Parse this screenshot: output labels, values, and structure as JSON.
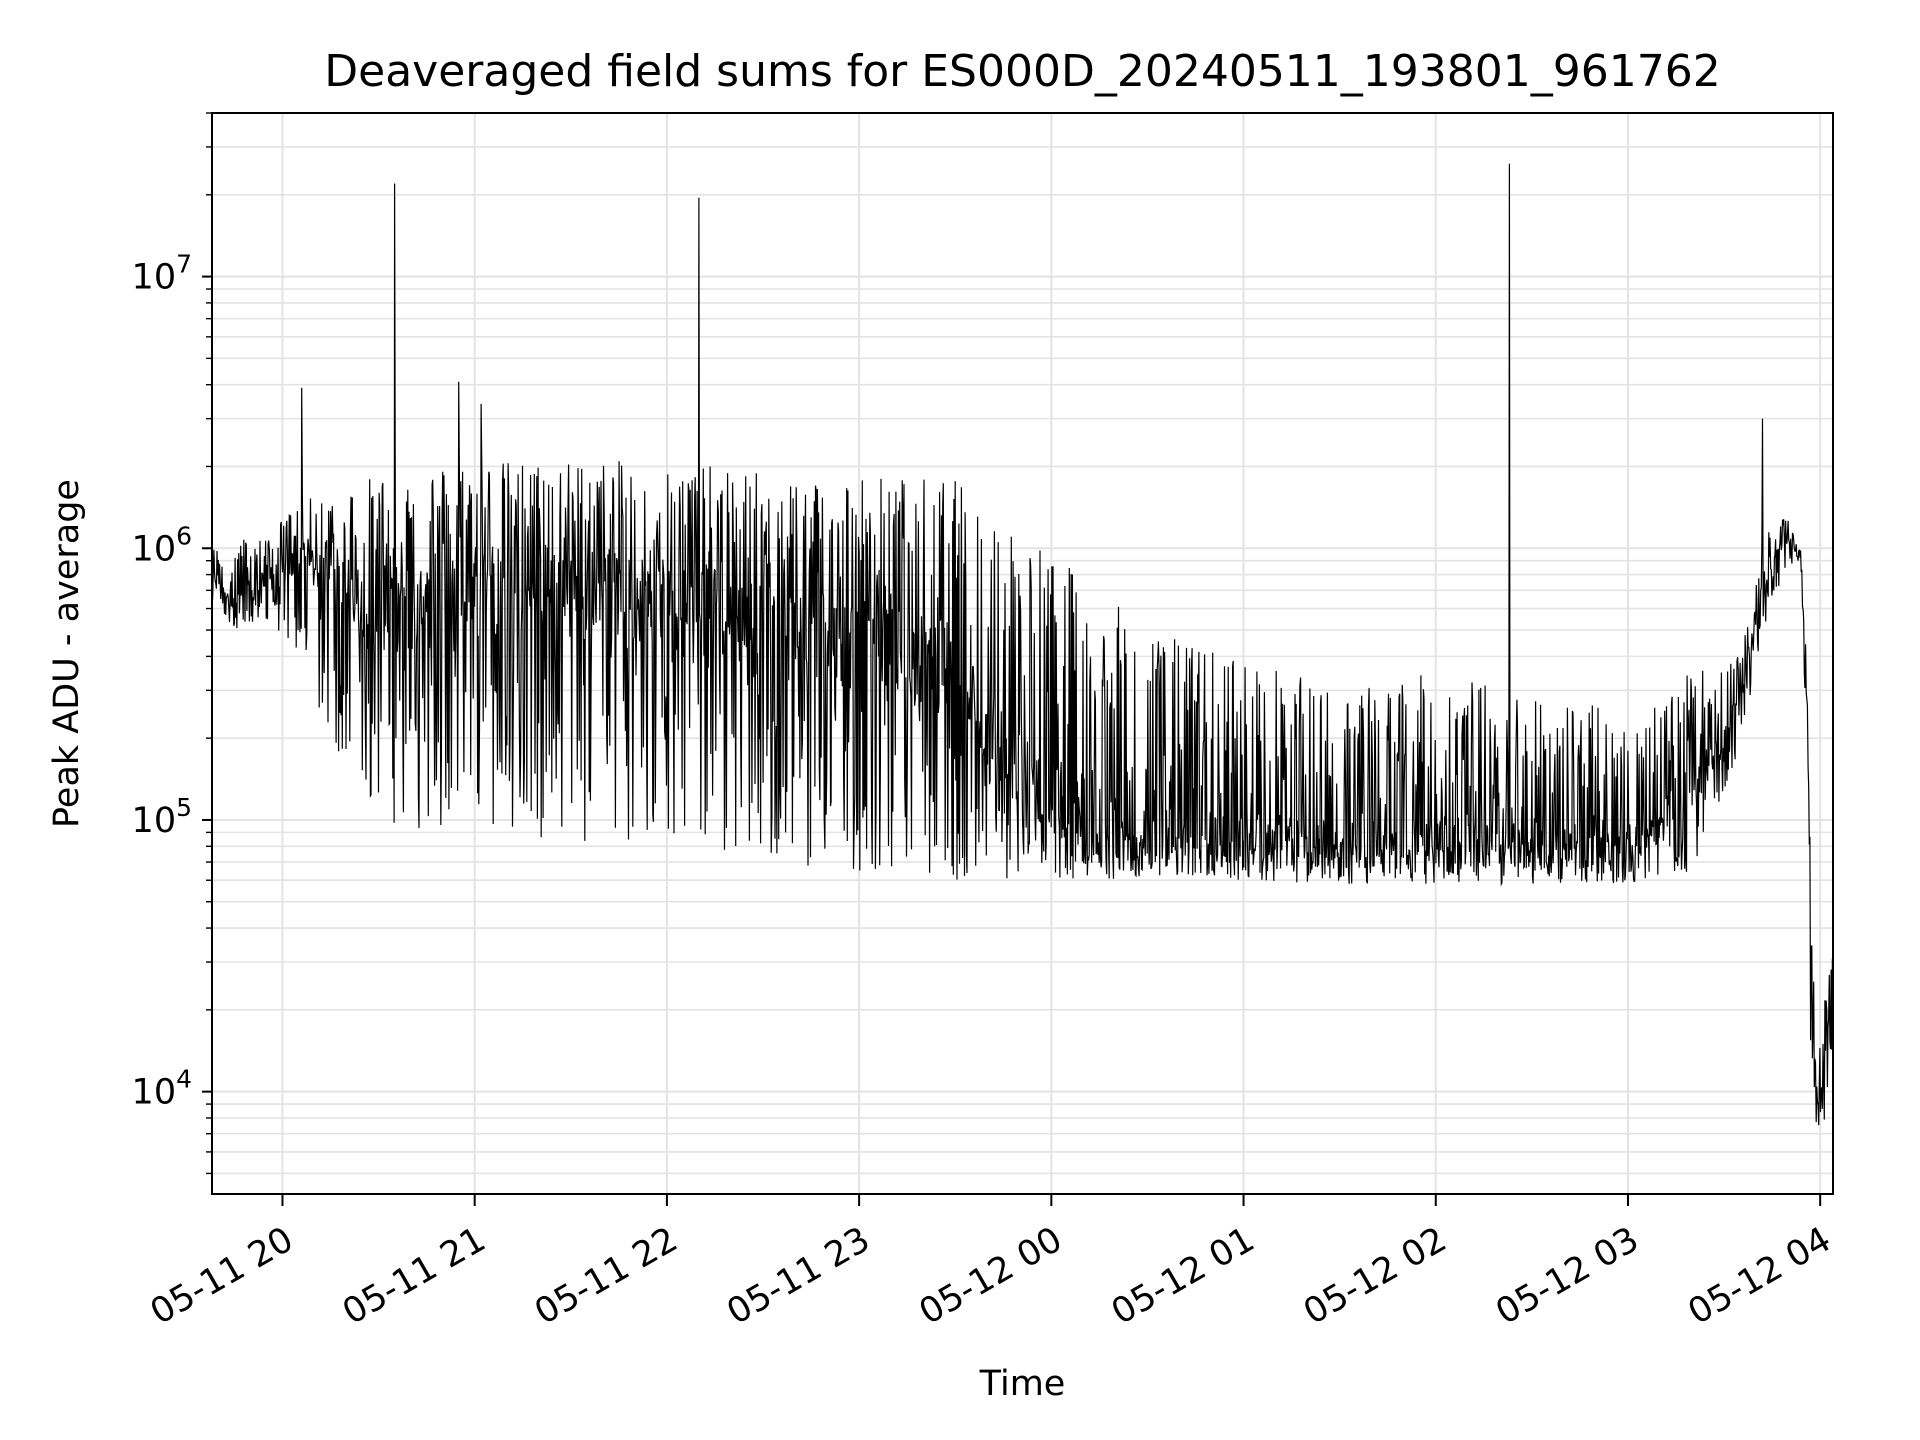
{
  "chart_data": {
    "type": "line",
    "title": "Deaveraged field sums for ES000D_20240511_193801_961762",
    "xlabel": "Time",
    "ylabel": "Peak ADU - average",
    "yscale": "log",
    "ylim": [
      4200,
      40000000
    ],
    "xlim": [
      "2024-05-11 19:38",
      "2024-05-12 04:04"
    ],
    "grid": true,
    "x_ticks": [
      {
        "t": "2024-05-11 20:00",
        "label": "05-11 20"
      },
      {
        "t": "2024-05-11 21:00",
        "label": "05-11 21"
      },
      {
        "t": "2024-05-11 22:00",
        "label": "05-11 22"
      },
      {
        "t": "2024-05-11 23:00",
        "label": "05-11 23"
      },
      {
        "t": "2024-05-12 00:00",
        "label": "05-12 00"
      },
      {
        "t": "2024-05-12 01:00",
        "label": "05-12 01"
      },
      {
        "t": "2024-05-12 02:00",
        "label": "05-12 02"
      },
      {
        "t": "2024-05-12 03:00",
        "label": "05-12 03"
      },
      {
        "t": "2024-05-12 04:00",
        "label": "05-12 04"
      }
    ],
    "y_ticks": [
      {
        "value": 10000,
        "base": "10",
        "exp": "4"
      },
      {
        "value": 100000,
        "base": "10",
        "exp": "5"
      },
      {
        "value": 1000000,
        "base": "10",
        "exp": "6"
      },
      {
        "value": 10000000,
        "base": "10",
        "exp": "7"
      }
    ],
    "envelope": [
      {
        "t": "2024-05-11 19:38",
        "upper": 1000000,
        "lower": 650000,
        "base": 800000
      },
      {
        "t": "2024-05-11 19:45",
        "upper": 1100000,
        "lower": 500000,
        "base": 650000
      },
      {
        "t": "2024-05-11 19:55",
        "upper": 1100000,
        "lower": 550000,
        "base": 750000
      },
      {
        "t": "2024-05-11 20:05",
        "upper": 1500000,
        "lower": 400000,
        "base": 900000
      },
      {
        "t": "2024-05-11 20:15",
        "upper": 1600000,
        "lower": 200000,
        "base": 800000
      },
      {
        "t": "2024-05-11 20:25",
        "upper": 1800000,
        "lower": 110000,
        "base": 600000
      },
      {
        "t": "2024-05-11 20:40",
        "upper": 2000000,
        "lower": 90000,
        "base": 600000
      },
      {
        "t": "2024-05-11 21:00",
        "upper": 2100000,
        "lower": 85000,
        "base": 700000
      },
      {
        "t": "2024-05-11 21:30",
        "upper": 2100000,
        "lower": 80000,
        "base": 700000
      },
      {
        "t": "2024-05-11 22:00",
        "upper": 2100000,
        "lower": 80000,
        "base": 650000
      },
      {
        "t": "2024-05-11 22:30",
        "upper": 1900000,
        "lower": 70000,
        "base": 500000
      },
      {
        "t": "2024-05-11 23:00",
        "upper": 1900000,
        "lower": 65000,
        "base": 450000
      },
      {
        "t": "2024-05-11 23:30",
        "upper": 1800000,
        "lower": 60000,
        "base": 350000
      },
      {
        "t": "2024-05-11 23:50",
        "upper": 1200000,
        "lower": 60000,
        "base": 150000
      },
      {
        "t": "2024-05-12 00:15",
        "upper": 700000,
        "lower": 60000,
        "base": 100000
      },
      {
        "t": "2024-05-12 00:30",
        "upper": 500000,
        "lower": 62000,
        "base": 85000
      },
      {
        "t": "2024-05-12 01:00",
        "upper": 400000,
        "lower": 60000,
        "base": 85000
      },
      {
        "t": "2024-05-12 01:30",
        "upper": 300000,
        "lower": 58000,
        "base": 80000
      },
      {
        "t": "2024-05-12 02:00",
        "upper": 350000,
        "lower": 58000,
        "base": 85000
      },
      {
        "t": "2024-05-12 02:30",
        "upper": 300000,
        "lower": 58000,
        "base": 80000
      },
      {
        "t": "2024-05-12 03:00",
        "upper": 250000,
        "lower": 58000,
        "base": 80000
      },
      {
        "t": "2024-05-12 03:20",
        "upper": 350000,
        "lower": 65000,
        "base": 120000
      },
      {
        "t": "2024-05-12 03:35",
        "upper": 400000,
        "lower": 180000,
        "base": 280000
      },
      {
        "t": "2024-05-12 03:42",
        "upper": 1200000,
        "lower": 500000,
        "base": 800000
      },
      {
        "t": "2024-05-12 03:50",
        "upper": 1300000,
        "lower": 900000,
        "base": 1100000
      },
      {
        "t": "2024-05-12 03:54",
        "upper": 1000000,
        "lower": 800000,
        "base": 900000
      },
      {
        "t": "2024-05-12 03:56",
        "upper": 400000,
        "lower": 150000,
        "base": 250000
      },
      {
        "t": "2024-05-12 03:57",
        "upper": 60000,
        "lower": 15000,
        "base": 30000
      },
      {
        "t": "2024-05-12 03:59",
        "upper": 12000,
        "lower": 7000,
        "base": 8500
      },
      {
        "t": "2024-05-12 04:01",
        "upper": 20000,
        "lower": 7000,
        "base": 13000
      },
      {
        "t": "2024-05-12 04:04",
        "upper": 37000,
        "lower": 15000,
        "base": 30000
      }
    ],
    "spikes": [
      {
        "t": "2024-05-11 20:06",
        "value": 3900000
      },
      {
        "t": "2024-05-11 20:35",
        "value": 22000000
      },
      {
        "t": "2024-05-11 20:55",
        "value": 4100000
      },
      {
        "t": "2024-05-11 21:02",
        "value": 3400000
      },
      {
        "t": "2024-05-11 22:10",
        "value": 19500000
      },
      {
        "t": "2024-05-12 02:23",
        "value": 26000000
      },
      {
        "t": "2024-05-12 03:42",
        "value": 3000000
      }
    ]
  }
}
